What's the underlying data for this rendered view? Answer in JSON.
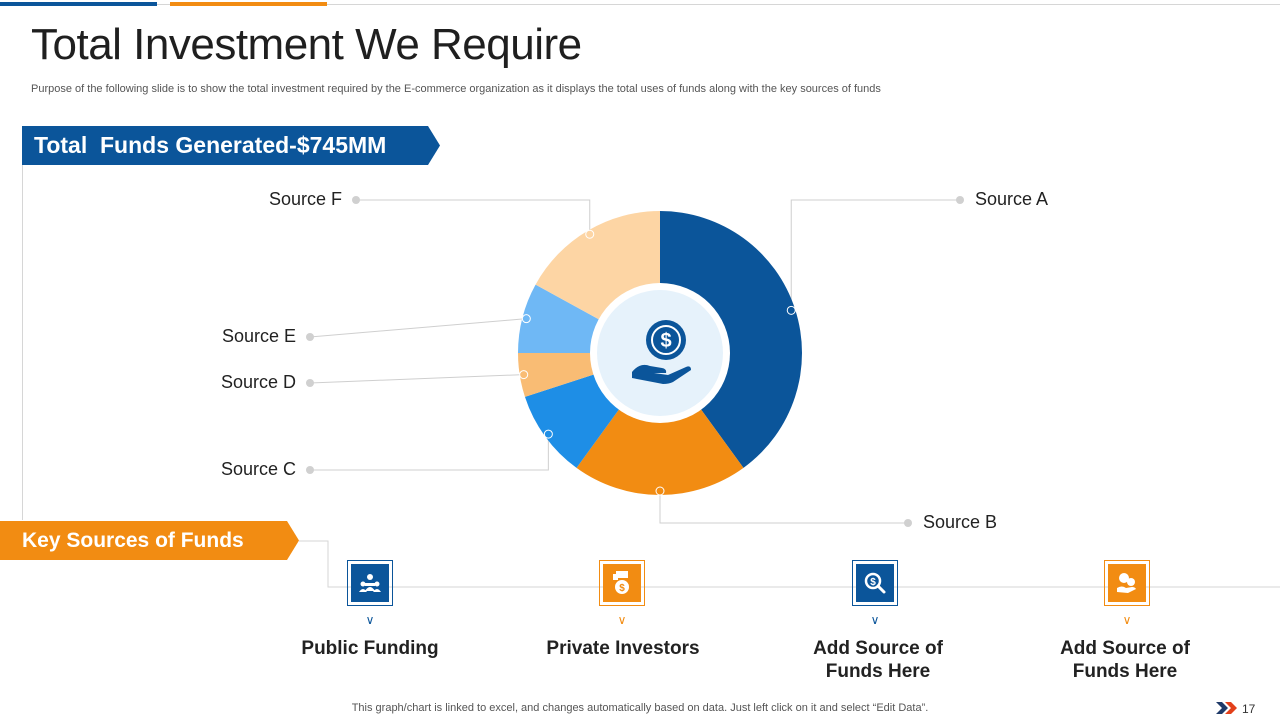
{
  "slide": {
    "title": "Total Investment We Require",
    "subtitle": "Purpose of the following slide is to show the total investment required by the E-commerce organization as it displays the total uses of funds along with the key sources of funds",
    "funds_banner": "Total  Funds Generated-$745MM",
    "key_sources_banner": "Key Sources of Funds",
    "footnote": "This graph/chart is linked to excel,  and changes automatically based on data. Just left click on it and select “Edit Data”.",
    "page_number": "17"
  },
  "chart_data": {
    "type": "pie",
    "variant": "donut",
    "title": "Total  Funds Generated-$745MM",
    "unit": "%",
    "categories": [
      "Source A",
      "Source B",
      "Source C",
      "Source D",
      "Source E",
      "Source F"
    ],
    "values": [
      40,
      20,
      10,
      5,
      8,
      17
    ],
    "colors": [
      "#0b559a",
      "#f28c12",
      "#1e8ee6",
      "#f9bc74",
      "#6fb8f5",
      "#fdd5a4"
    ],
    "center_icon": "money-hand-icon",
    "legend": "callout-labels"
  },
  "key_sources": [
    {
      "label_line1": "Public Funding",
      "label_line2": "",
      "icon": "group-icon",
      "color": "blue"
    },
    {
      "label_line1": "Private Investors",
      "label_line2": "",
      "icon": "money-bag-icon",
      "color": "orange"
    },
    {
      "label_line1": "Add Source of",
      "label_line2": "Funds Here",
      "icon": "magnify-dollar-icon",
      "color": "blue"
    },
    {
      "label_line1": "Add Source of",
      "label_line2": "Funds Here",
      "icon": "coins-hand-icon",
      "color": "orange"
    }
  ]
}
